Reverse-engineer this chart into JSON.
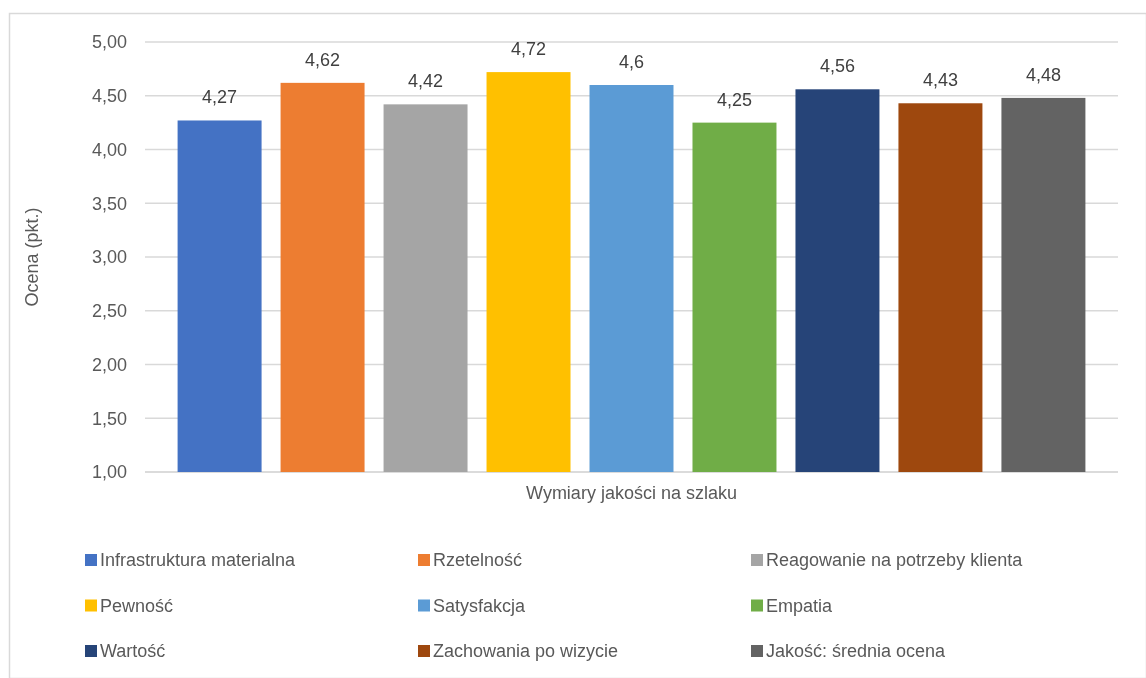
{
  "chart_data": {
    "type": "bar",
    "categories": [
      "Wymiary jakości na szlaku"
    ],
    "ylabel": "Ocena (pkt.)",
    "ylim": [
      1,
      5
    ],
    "yticks": [
      {
        "value": 1,
        "label": "1,00"
      },
      {
        "value": 1.5,
        "label": "1,50"
      },
      {
        "value": 2,
        "label": "2,00"
      },
      {
        "value": 2.5,
        "label": "2,50"
      },
      {
        "value": 3,
        "label": "3,00"
      },
      {
        "value": 3.5,
        "label": "3,50"
      },
      {
        "value": 4,
        "label": "4,00"
      },
      {
        "value": 4.5,
        "label": "4,50"
      },
      {
        "value": 5,
        "label": "5,00"
      }
    ],
    "grid": "y",
    "legend": "bottom",
    "series": [
      {
        "name": "Infrastruktura materialna",
        "color": "#4472c4",
        "values": [
          4.27
        ],
        "value_labels": [
          "4,27"
        ]
      },
      {
        "name": "Rzetelność",
        "color": "#ed7d31",
        "values": [
          4.62
        ],
        "value_labels": [
          "4,62"
        ]
      },
      {
        "name": "Reagowanie na potrzeby klienta",
        "color": "#a5a5a5",
        "values": [
          4.42
        ],
        "value_labels": [
          "4,42"
        ]
      },
      {
        "name": "Pewność",
        "color": "#ffc000",
        "values": [
          4.72
        ],
        "value_labels": [
          "4,72"
        ]
      },
      {
        "name": "Satysfakcja",
        "color": "#5b9bd5",
        "values": [
          4.6
        ],
        "value_labels": [
          "4,6"
        ]
      },
      {
        "name": "Empatia",
        "color": "#70ad47",
        "values": [
          4.25
        ],
        "value_labels": [
          "4,25"
        ]
      },
      {
        "name": "Wartość",
        "color": "#264478",
        "values": [
          4.56
        ],
        "value_labels": [
          "4,56"
        ]
      },
      {
        "name": "Zachowania po wizycie",
        "color": "#9e480e",
        "values": [
          4.43
        ],
        "value_labels": [
          "4,43"
        ]
      },
      {
        "name": "Jakość: średnia ocena",
        "color": "#636363",
        "values": [
          4.48
        ],
        "value_labels": [
          "4,48"
        ]
      }
    ]
  }
}
